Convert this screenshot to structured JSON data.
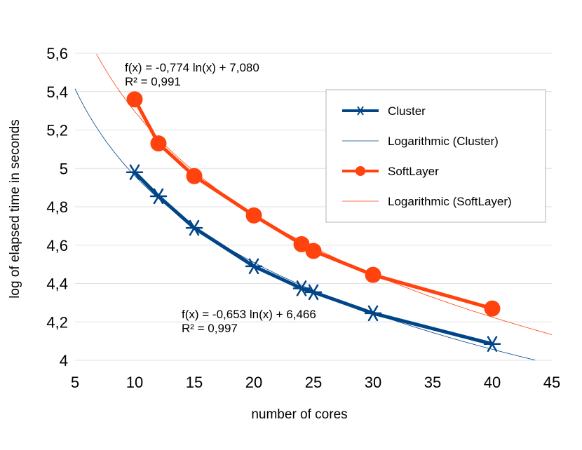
{
  "chart_data": {
    "type": "line",
    "xlabel": "number of cores",
    "ylabel": "log of elapsed time in seconds",
    "xlim": [
      5,
      45
    ],
    "ylim": [
      4,
      5.6
    ],
    "x_ticks": [
      5,
      10,
      15,
      20,
      25,
      30,
      35,
      40,
      45
    ],
    "y_ticks": [
      4,
      4.2,
      4.4,
      4.6,
      4.8,
      5,
      5.2,
      5.4,
      5.6
    ],
    "x_tick_labels": [
      "5",
      "10",
      "15",
      "20",
      "25",
      "30",
      "35",
      "40",
      "45"
    ],
    "y_tick_labels": [
      "4",
      "4,2",
      "4,4",
      "4,6",
      "4,8",
      "5",
      "5,2",
      "5,4",
      "5,6"
    ],
    "grid": "horizontal",
    "legend_position": "top-right",
    "series": [
      {
        "name": "Cluster",
        "color": "#004586",
        "marker": "star",
        "x": [
          10,
          12,
          15,
          20,
          24,
          25,
          30,
          40
        ],
        "y": [
          4.98,
          4.855,
          4.69,
          4.49,
          4.375,
          4.355,
          4.245,
          4.085
        ]
      },
      {
        "name": "SoftLayer",
        "color": "#ff420e",
        "marker": "circle",
        "x": [
          10,
          12,
          15,
          20,
          24,
          25,
          30,
          40
        ],
        "y": [
          5.36,
          5.13,
          4.96,
          4.755,
          4.605,
          4.57,
          4.445,
          4.27
        ]
      }
    ],
    "trendlines": [
      {
        "name": "Logarithmic (Cluster)",
        "color": "#004586",
        "a": -0.653,
        "b": 6.466,
        "equation": "f(x) = -0,653 ln(x) + 6,466",
        "r2": "R² = 0,997"
      },
      {
        "name": "Logarithmic (SoftLayer)",
        "color": "#ff420e",
        "a": -0.774,
        "b": 7.08,
        "equation": "f(x) = -0,774 ln(x) + 7,080",
        "r2": "R² = 0,991"
      }
    ]
  }
}
